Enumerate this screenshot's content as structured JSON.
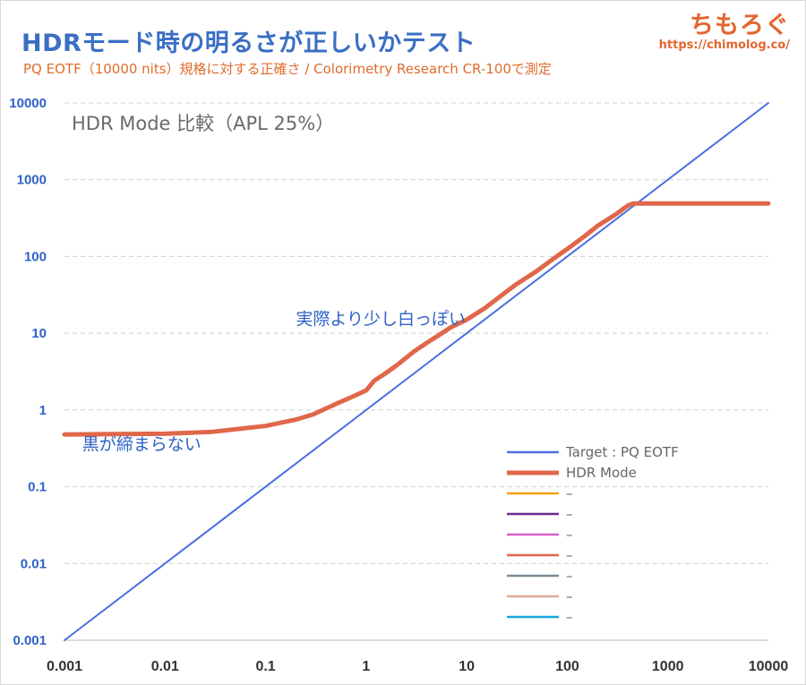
{
  "header": {
    "title": "HDRモード時の明るさが正しいかテスト",
    "subtitle": "PQ EOTF（10000 nits）規格に対する正確さ / Colorimetry Research CR-100で測定",
    "brand_name": "ちもろぐ",
    "brand_url": "https://chimolog.co/"
  },
  "chart_data": {
    "type": "line",
    "title": "HDR Mode 比較（APL 25%）",
    "x_scale": "log",
    "y_scale": "log",
    "xlim": [
      0.001,
      10000
    ],
    "ylim": [
      0.001,
      10000
    ],
    "x_ticks": [
      "0.001",
      "0.01",
      "0.1",
      "1",
      "10",
      "100",
      "1000",
      "10000"
    ],
    "y_ticks": [
      "0.001",
      "0.01",
      "0.1",
      "1",
      "10",
      "100",
      "1000",
      "10000"
    ],
    "grid": "horizontal-dashed",
    "legend_position": "bottom-right",
    "series": [
      {
        "name": "Target : PQ EOTF",
        "color": "#4a6fe0",
        "x": [
          0.001,
          10000
        ],
        "y": [
          0.001,
          10000
        ]
      },
      {
        "name": "HDR Mode",
        "color": "#e0674a",
        "x": [
          0.001,
          0.01,
          0.03,
          0.1,
          0.2,
          0.3,
          0.5,
          0.7,
          1,
          1.2,
          1.5,
          2,
          3,
          4,
          5,
          7,
          10,
          15,
          20,
          30,
          50,
          70,
          100,
          150,
          200,
          300,
          400,
          450,
          500,
          1000,
          2000,
          5000,
          10000
        ],
        "y": [
          0.48,
          0.49,
          0.52,
          0.62,
          0.75,
          0.88,
          1.2,
          1.45,
          1.8,
          2.4,
          2.9,
          3.8,
          5.8,
          7.5,
          9.0,
          12,
          15,
          21,
          28,
          42,
          65,
          90,
          125,
          185,
          250,
          350,
          460,
          490,
          490,
          490,
          490,
          490,
          490
        ]
      },
      {
        "name": "–",
        "color": "#f0a010",
        "x": [],
        "y": []
      },
      {
        "name": "–",
        "color": "#6a2a90",
        "x": [],
        "y": []
      },
      {
        "name": "–",
        "color": "#d860c8",
        "x": [],
        "y": []
      },
      {
        "name": "–",
        "color": "#e0674a",
        "x": [],
        "y": []
      },
      {
        "name": "–",
        "color": "#7a8a94",
        "x": [],
        "y": []
      },
      {
        "name": "–",
        "color": "#e0a898",
        "x": [],
        "y": []
      },
      {
        "name": "–",
        "color": "#18a8e0",
        "x": [],
        "y": []
      }
    ],
    "annotations": [
      {
        "text": "実際より少し白っぽい",
        "x": 0.2,
        "y": 13
      },
      {
        "text": "黒が締まらない",
        "x": 0.0015,
        "y": 0.3
      }
    ]
  }
}
